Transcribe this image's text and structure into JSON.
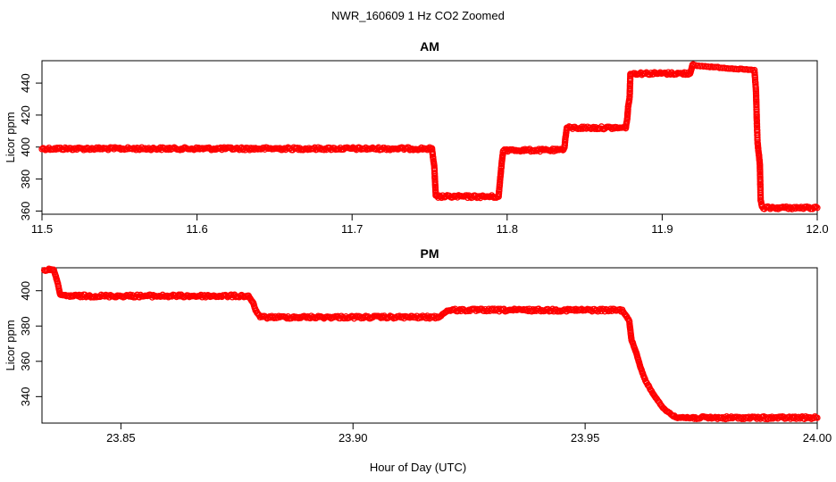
{
  "figure_title": "NWR_160609  1 Hz CO2 Zoomed",
  "xlabel": "Hour of Day (UTC)",
  "marker_color": "#ff0000",
  "chart_data": [
    {
      "type": "scatter",
      "title": "AM",
      "ylabel": "Licor ppm",
      "xlim": [
        11.5,
        12.0
      ],
      "ylim": [
        358,
        454
      ],
      "xticks": [
        11.5,
        11.6,
        11.7,
        11.8,
        11.9,
        12.0
      ],
      "xtick_labels": [
        "11.5",
        "11.6",
        "11.7",
        "11.8",
        "11.9",
        "12.0"
      ],
      "yticks": [
        360,
        380,
        400,
        420,
        440
      ],
      "ytick_labels": [
        "360",
        "380",
        "400",
        "420",
        "440"
      ],
      "grid": false,
      "series": [
        {
          "x": [
            11.5,
            11.7515,
            11.752,
            11.753,
            11.754,
            11.7945,
            11.7955,
            11.7965,
            11.7975,
            11.836,
            11.837,
            11.8375,
            11.8385,
            11.8765,
            11.8775,
            11.878,
            11.879,
            11.8795,
            11.918,
            11.9195,
            11.9205,
            11.9595,
            11.9605,
            11.961,
            11.9615,
            11.962,
            11.9625,
            11.963,
            11.9635,
            11.9645,
            12.0
          ],
          "y": [
            399,
            399,
            395,
            388,
            369,
            369,
            380,
            390,
            398,
            398,
            400,
            405,
            412,
            412,
            418,
            425,
            431,
            446,
            446,
            451,
            451,
            448,
            435,
            417,
            403,
            398,
            394,
            389,
            367,
            362,
            362
          ]
        }
      ]
    },
    {
      "type": "scatter",
      "title": "PM",
      "ylabel": "Licor ppm",
      "xlim": [
        23.833,
        24.0
      ],
      "ylim": [
        325,
        413
      ],
      "xticks": [
        23.85,
        23.9,
        23.95,
        24.0
      ],
      "xtick_labels": [
        "23.85",
        "23.90",
        "23.95",
        "24.00"
      ],
      "yticks": [
        340,
        360,
        380,
        400
      ],
      "ytick_labels": [
        "340",
        "360",
        "380",
        "400"
      ],
      "grid": false,
      "series": [
        {
          "x": [
            23.8335,
            23.8355,
            23.836,
            23.8365,
            23.837,
            23.8775,
            23.8785,
            23.879,
            23.88,
            23.9185,
            23.9195,
            23.9205,
            23.958,
            23.959,
            23.9595,
            23.96,
            23.961,
            23.962,
            23.963,
            23.965,
            23.967,
            23.969,
            23.9715,
            24.0
          ],
          "y": [
            412,
            412,
            408,
            403,
            397,
            397,
            393,
            389,
            385,
            385,
            387,
            389,
            389,
            385,
            383,
            372,
            365,
            356,
            349,
            340,
            333,
            329,
            328,
            328
          ]
        }
      ]
    }
  ]
}
